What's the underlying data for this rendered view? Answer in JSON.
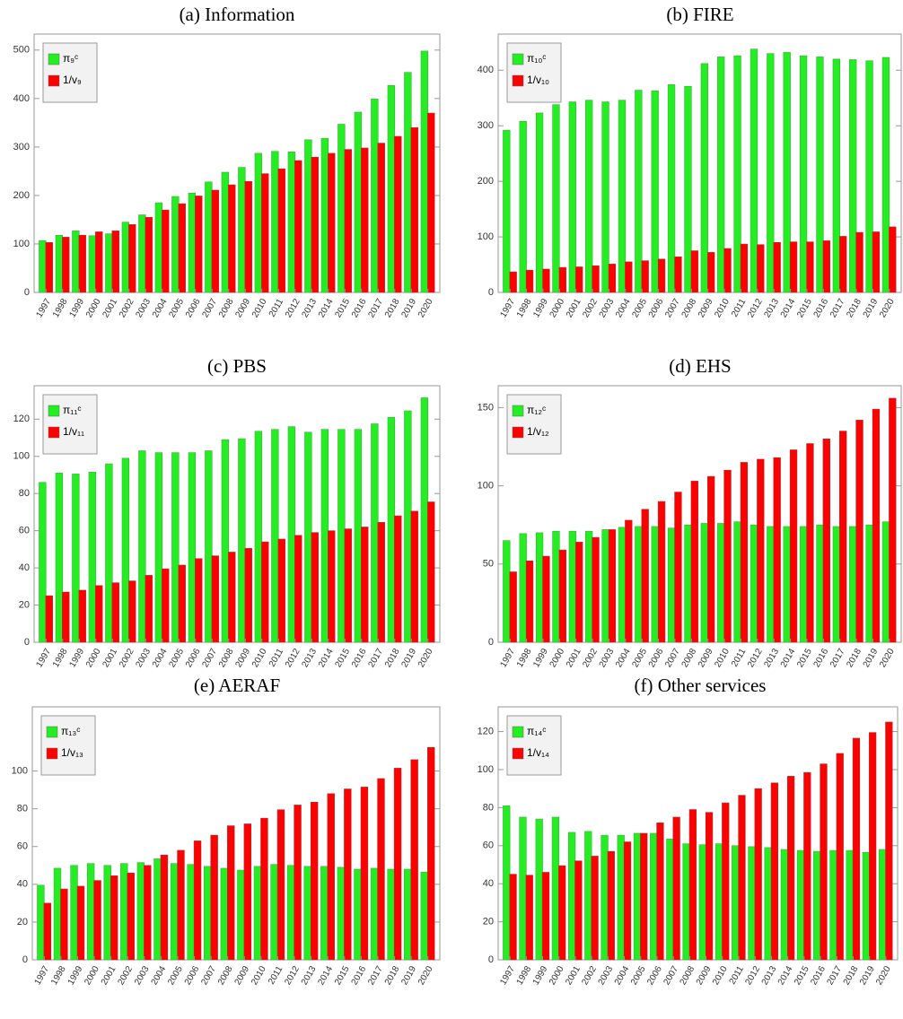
{
  "chart_data": [
    {
      "type": "bar",
      "title": "(a)  Information",
      "legend": "top-left",
      "categories": [
        "1997",
        "1998",
        "1999",
        "2000",
        "2001",
        "2002",
        "2003",
        "2004",
        "2005",
        "2006",
        "2007",
        "2008",
        "2009",
        "2010",
        "2011",
        "2012",
        "2013",
        "2014",
        "2015",
        "2016",
        "2017",
        "2018",
        "2019",
        "2020"
      ],
      "series": [
        {
          "name": "π₉ᶜ",
          "color": "#22ee22",
          "values": [
            107,
            118,
            127,
            117,
            121,
            145,
            160,
            185,
            198,
            205,
            228,
            248,
            258,
            287,
            291,
            290,
            315,
            318,
            347,
            372,
            399,
            427,
            454,
            498
          ]
        },
        {
          "name": "1/v₉",
          "color": "#ff0000",
          "values": [
            103,
            114,
            118,
            125,
            127,
            140,
            155,
            170,
            183,
            199,
            211,
            222,
            229,
            245,
            255,
            272,
            279,
            287,
            295,
            298,
            308,
            322,
            340,
            370
          ]
        }
      ],
      "ylim": [
        0,
        533
      ],
      "yticks": [
        0,
        100,
        200,
        300,
        400,
        500
      ]
    },
    {
      "type": "bar",
      "title": "(b)  FIRE",
      "legend": "top-left",
      "categories": [
        "1997",
        "1998",
        "1999",
        "2000",
        "2001",
        "2002",
        "2003",
        "2004",
        "2005",
        "2006",
        "2007",
        "2008",
        "2009",
        "2010",
        "2011",
        "2012",
        "2013",
        "2014",
        "2015",
        "2016",
        "2017",
        "2018",
        "2019",
        "2020"
      ],
      "series": [
        {
          "name": "π₁₀ᶜ",
          "color": "#22ee22",
          "values": [
            292,
            308,
            323,
            338,
            343,
            346,
            343,
            346,
            364,
            363,
            374,
            371,
            412,
            424,
            426,
            438,
            430,
            432,
            426,
            424,
            420,
            419,
            417,
            423
          ]
        },
        {
          "name": "1/v₁₀",
          "color": "#ff0000",
          "values": [
            37,
            40,
            42,
            45,
            46,
            48,
            51,
            55,
            57,
            60,
            64,
            75,
            72,
            79,
            87,
            86,
            90,
            91,
            91,
            93,
            101,
            108,
            109,
            118
          ]
        }
      ],
      "ylim": [
        0,
        465
      ],
      "yticks": [
        0,
        100,
        200,
        300,
        400
      ]
    },
    {
      "type": "bar",
      "title": "(c)  PBS",
      "legend": "top-left",
      "categories": [
        "1997",
        "1998",
        "1999",
        "2000",
        "2001",
        "2002",
        "2003",
        "2004",
        "2005",
        "2006",
        "2007",
        "2008",
        "2009",
        "2010",
        "2011",
        "2012",
        "2013",
        "2014",
        "2015",
        "2016",
        "2017",
        "2018",
        "2019",
        "2020"
      ],
      "series": [
        {
          "name": "π₁₁ᶜ",
          "color": "#22ee22",
          "values": [
            86,
            91,
            90.5,
            91.5,
            96,
            99,
            103,
            102,
            102,
            102,
            103,
            109,
            109.5,
            113.5,
            114.5,
            116,
            113,
            114.5,
            114.5,
            114.5,
            117.5,
            121,
            124.5,
            131.5
          ]
        },
        {
          "name": "1/v₁₁",
          "color": "#ff0000",
          "values": [
            25,
            27,
            28,
            30.5,
            32,
            33,
            36,
            39.5,
            41.5,
            45,
            46.5,
            48.5,
            50.5,
            54,
            55.5,
            57.5,
            59,
            60,
            61,
            62,
            64.5,
            68,
            70.5,
            75.5
          ]
        }
      ],
      "ylim": [
        0,
        138
      ],
      "yticks": [
        0,
        20,
        40,
        60,
        80,
        100,
        120
      ]
    },
    {
      "type": "bar",
      "title": "(d)  EHS",
      "legend": "top-left",
      "categories": [
        "1997",
        "1998",
        "1999",
        "2000",
        "2001",
        "2002",
        "2003",
        "2004",
        "2005",
        "2006",
        "2007",
        "2008",
        "2009",
        "2010",
        "2011",
        "2012",
        "2013",
        "2014",
        "2015",
        "2016",
        "2017",
        "2018",
        "2019",
        "2020"
      ],
      "series": [
        {
          "name": "π₁₂ᶜ",
          "color": "#22ee22",
          "values": [
            65,
            69.5,
            70,
            71,
            71,
            71,
            72,
            73.5,
            74,
            74,
            73,
            75,
            76,
            76,
            77,
            75,
            74,
            74,
            74,
            75,
            74,
            74,
            75,
            77
          ]
        },
        {
          "name": "1/v₁₂",
          "color": "#ff0000",
          "values": [
            45,
            52,
            55,
            59,
            64,
            67,
            72,
            78,
            85,
            90,
            96,
            103,
            106,
            110,
            115,
            117,
            118,
            123,
            127,
            130,
            135,
            142,
            149,
            156
          ]
        }
      ],
      "ylim": [
        0,
        164
      ],
      "yticks": [
        0,
        50,
        100,
        150
      ]
    },
    {
      "type": "bar",
      "title": "(e)  AERAF",
      "legend": "top-left",
      "categories": [
        "1997",
        "1998",
        "1999",
        "2000",
        "2001",
        "2002",
        "2003",
        "2004",
        "2005",
        "2006",
        "2007",
        "2008",
        "2009",
        "2010",
        "2011",
        "2012",
        "2013",
        "2014",
        "2015",
        "2016",
        "2017",
        "2018",
        "2019",
        "2020"
      ],
      "series": [
        {
          "name": "π₁₃ᶜ",
          "color": "#22ee22",
          "values": [
            39.5,
            48.5,
            50,
            51,
            50,
            51,
            51.5,
            53.5,
            51,
            50.5,
            49.5,
            48.5,
            47.5,
            49.5,
            50.5,
            50,
            49.5,
            49.5,
            49,
            48,
            48.5,
            48,
            48,
            46.5
          ]
        },
        {
          "name": "1/v₁₃",
          "color": "#ff0000",
          "values": [
            30,
            37.5,
            39,
            42,
            44.5,
            46,
            50,
            55.5,
            58,
            63,
            66,
            71,
            72,
            75,
            79.5,
            82,
            83.5,
            88,
            90.5,
            91.5,
            96,
            101.5,
            106,
            112.5
          ]
        }
      ],
      "ylim": [
        0,
        134
      ],
      "yticks": [
        0,
        20,
        40,
        60,
        80,
        100
      ]
    },
    {
      "type": "bar",
      "title": "(f)  Other services",
      "legend": "top-left",
      "categories": [
        "1997",
        "1998",
        "1999",
        "2000",
        "2001",
        "2002",
        "2003",
        "2004",
        "2005",
        "2006",
        "2007",
        "2008",
        "2009",
        "2010",
        "2011",
        "2012",
        "2013",
        "2014",
        "2015",
        "2016",
        "2017",
        "2018",
        "2019",
        "2020"
      ],
      "series": [
        {
          "name": "π₁₄ᶜ",
          "color": "#22ee22",
          "values": [
            81,
            75,
            74,
            75,
            67,
            67.5,
            65.5,
            65.5,
            66.5,
            66.5,
            63.5,
            61,
            60.5,
            61,
            60,
            59.5,
            59,
            58,
            57.5,
            57,
            57.5,
            57.5,
            56.5,
            58
          ]
        },
        {
          "name": "1/v₁₄",
          "color": "#ff0000",
          "values": [
            45,
            44.5,
            46,
            49.5,
            52,
            54.5,
            57,
            62,
            66.5,
            72,
            75,
            79,
            77.5,
            82.5,
            86.5,
            90,
            93,
            96.5,
            98.5,
            103,
            108.5,
            116.5,
            119.5,
            125
          ]
        }
      ],
      "ylim": [
        0,
        133
      ],
      "yticks": [
        0,
        20,
        40,
        60,
        80,
        100,
        120
      ]
    }
  ]
}
